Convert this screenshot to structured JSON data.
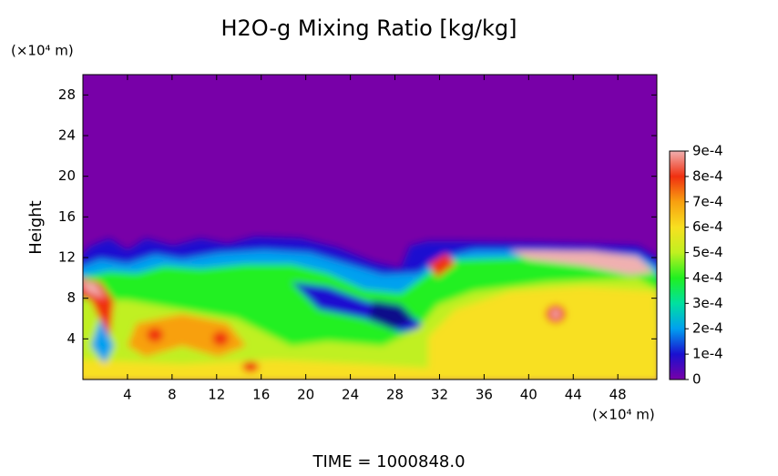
{
  "chart_data": {
    "type": "heatmap",
    "title": "H2O-g Mixing Ratio [kg/kg]",
    "y_unit": "(×10⁴ m)",
    "x_unit": "(×10⁴ m)",
    "ylabel": "Height",
    "footer": "TIME = 1000848.0",
    "xlim": [
      0,
      51.5
    ],
    "xticks": [
      4,
      8,
      12,
      16,
      20,
      24,
      28,
      32,
      36,
      40,
      44,
      48
    ],
    "ylim": [
      0,
      30
    ],
    "yticks": [
      4,
      8,
      12,
      16,
      20,
      24,
      28
    ],
    "colorbar_lim": [
      0,
      0.0009
    ],
    "colorbar_ticks": [
      0,
      {
        "value": 0.0001,
        "label": "1e-4"
      },
      {
        "value": 0.0002,
        "label": "2e-4"
      },
      {
        "value": 0.0003,
        "label": "3e-4"
      },
      {
        "value": 0.0004,
        "label": "4e-4"
      },
      {
        "value": 0.0005,
        "label": "5e-4"
      },
      {
        "value": 0.0006,
        "label": "6e-4"
      },
      {
        "value": 0.0007,
        "label": "7e-4"
      },
      {
        "value": 0.0008,
        "label": "8e-4"
      },
      {
        "value": 0.0009,
        "label": "9e-4"
      }
    ],
    "colorscale": [
      "#7800a8",
      "#1a10d0",
      "#00a0f0",
      "#00e0a0",
      "#20f020",
      "#c0f020",
      "#f8e020",
      "#f8a010",
      "#f03010",
      "#f0b0b0"
    ]
  }
}
